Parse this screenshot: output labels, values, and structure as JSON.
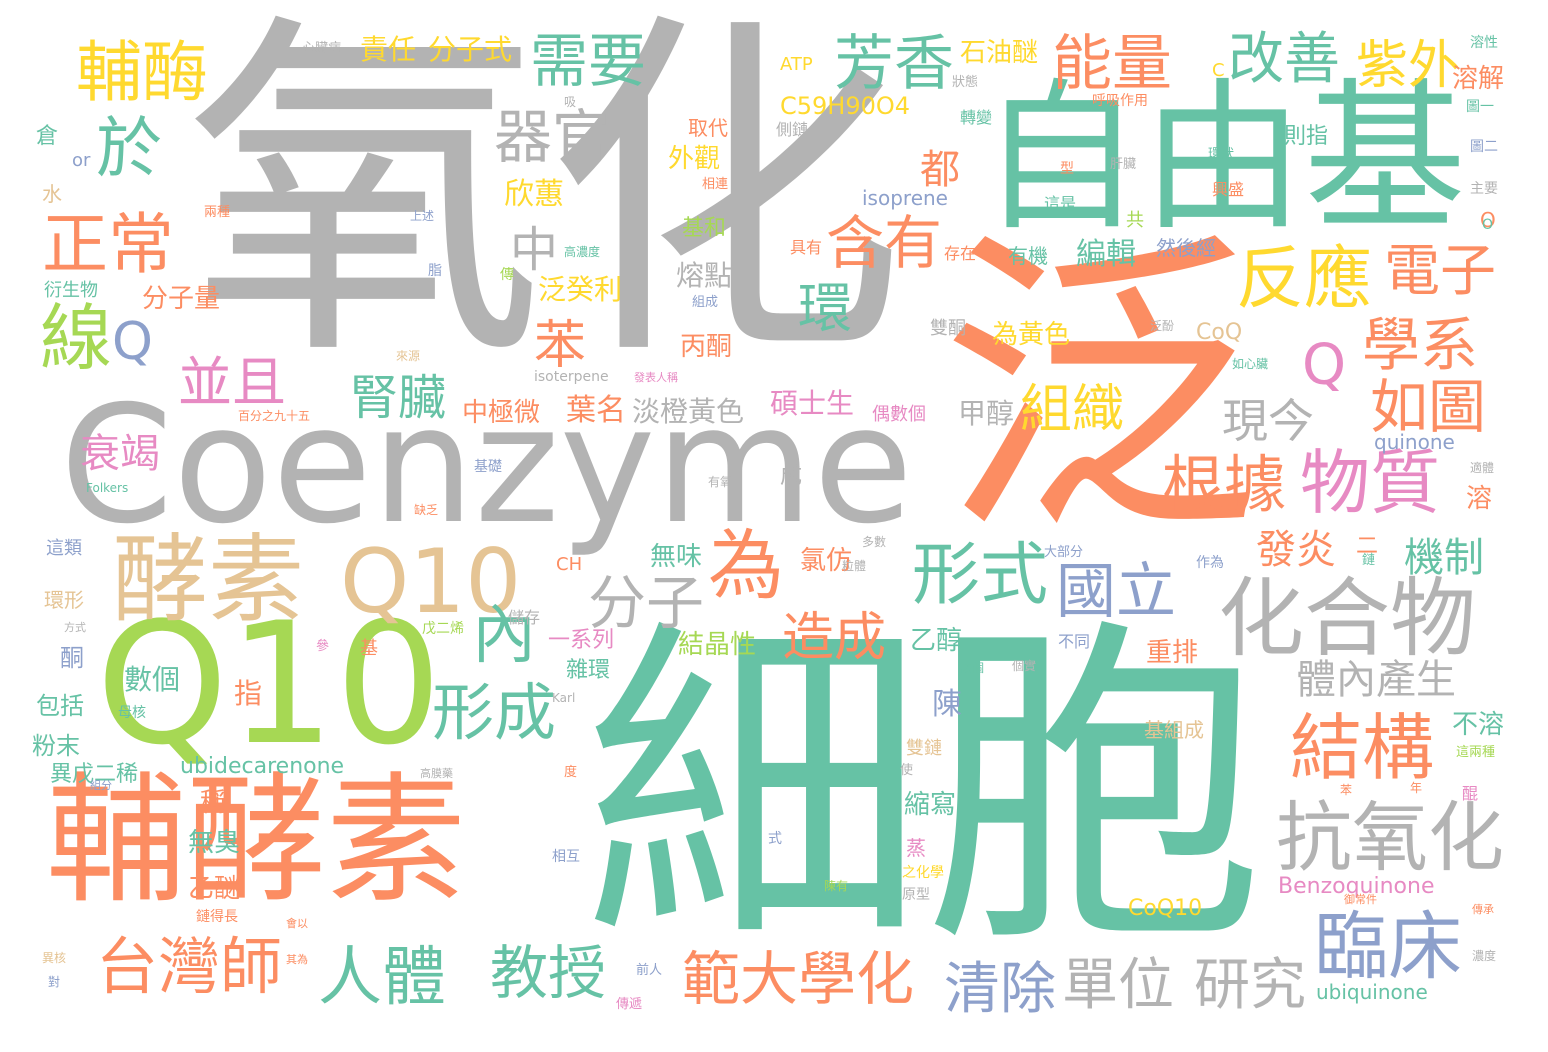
{
  "palette": {
    "green": "#66c2a5",
    "orange": "#fc8d62",
    "gray": "#b3b3b3",
    "lime": "#a6d854",
    "yellow": "#ffd92f",
    "tan": "#e5c494",
    "blue": "#8da0cb",
    "pink": "#e78ac3"
  },
  "words": [
    {
      "text": "氧化",
      "color": "gray"
    },
    {
      "text": "泛",
      "color": "orange"
    },
    {
      "text": "細胞",
      "color": "green"
    },
    {
      "text": "自由基",
      "color": "green"
    },
    {
      "text": "Coenzyme",
      "color": "gray"
    },
    {
      "text": "Q10",
      "color": "lime"
    },
    {
      "text": "輔酵素",
      "color": "orange"
    },
    {
      "text": "酵素",
      "color": "tan"
    },
    {
      "text": "Q10",
      "color": "tan"
    },
    {
      "text": "化合物",
      "color": "gray"
    },
    {
      "text": "抗氧化",
      "color": "gray"
    },
    {
      "text": "臨床",
      "color": "blue"
    },
    {
      "text": "結構",
      "color": "orange"
    },
    {
      "text": "物質",
      "color": "pink"
    },
    {
      "text": "根據",
      "color": "orange"
    },
    {
      "text": "台灣師",
      "color": "orange"
    },
    {
      "text": "人體",
      "color": "green"
    },
    {
      "text": "範大學化",
      "color": "orange"
    },
    {
      "text": "教授",
      "color": "green"
    },
    {
      "text": "單位",
      "color": "gray"
    },
    {
      "text": "研究",
      "color": "gray"
    },
    {
      "text": "清除",
      "color": "blue"
    },
    {
      "text": "形式",
      "color": "green"
    },
    {
      "text": "分子",
      "color": "gray"
    },
    {
      "text": "為",
      "color": "orange"
    },
    {
      "text": "內",
      "color": "green"
    },
    {
      "text": "形成",
      "color": "green"
    },
    {
      "text": "國立",
      "color": "blue"
    },
    {
      "text": "造成",
      "color": "orange"
    },
    {
      "text": "輔酶",
      "color": "yellow"
    },
    {
      "text": "於",
      "color": "green"
    },
    {
      "text": "正常",
      "color": "orange"
    },
    {
      "text": "線",
      "color": "lime"
    },
    {
      "text": "Q",
      "color": "blue"
    },
    {
      "text": "芳香",
      "color": "green"
    },
    {
      "text": "能量",
      "color": "orange"
    },
    {
      "text": "改善",
      "color": "green"
    },
    {
      "text": "紫外",
      "color": "yellow"
    },
    {
      "text": "需要",
      "color": "green"
    },
    {
      "text": "器官",
      "color": "gray"
    },
    {
      "text": "含有",
      "color": "orange"
    },
    {
      "text": "反應",
      "color": "yellow"
    },
    {
      "text": "電子",
      "color": "orange"
    },
    {
      "text": "學系",
      "color": "orange"
    },
    {
      "text": "Q",
      "color": "pink"
    },
    {
      "text": "如圖",
      "color": "orange"
    },
    {
      "text": "中",
      "color": "gray"
    },
    {
      "text": "環",
      "color": "green"
    },
    {
      "text": "苯",
      "color": "orange"
    },
    {
      "text": "並且",
      "color": "pink"
    },
    {
      "text": "腎臟",
      "color": "green"
    },
    {
      "text": "組織",
      "color": "yellow"
    },
    {
      "text": "現今",
      "color": "gray"
    },
    {
      "text": "衰竭",
      "color": "pink"
    },
    {
      "text": "葉名",
      "color": "orange"
    },
    {
      "text": "淡橙黃色",
      "color": "gray"
    },
    {
      "text": "中極微",
      "color": "orange"
    },
    {
      "text": "碩士生",
      "color": "pink"
    },
    {
      "text": "發炎",
      "color": "orange"
    },
    {
      "text": "機制",
      "color": "green"
    },
    {
      "text": "體內產生",
      "color": "gray"
    },
    {
      "text": "都",
      "color": "orange"
    },
    {
      "text": "欣蕙",
      "color": "yellow"
    },
    {
      "text": "外觀",
      "color": "yellow"
    },
    {
      "text": "取代",
      "color": "orange"
    },
    {
      "text": "責任",
      "color": "yellow"
    },
    {
      "text": "分子式",
      "color": "yellow"
    },
    {
      "text": "石油醚",
      "color": "yellow"
    },
    {
      "text": "C59H90O4",
      "color": "yellow"
    },
    {
      "text": "ATP",
      "color": "yellow"
    },
    {
      "text": "熔點",
      "color": "gray"
    },
    {
      "text": "基和",
      "color": "lime"
    },
    {
      "text": "泛癸利",
      "color": "yellow"
    },
    {
      "text": "分子量",
      "color": "orange"
    },
    {
      "text": "丙酮",
      "color": "orange"
    },
    {
      "text": "為黃色",
      "color": "yellow"
    },
    {
      "text": "編輯",
      "color": "green"
    },
    {
      "text": "CoQ",
      "color": "tan"
    },
    {
      "text": "甲醇",
      "color": "gray"
    },
    {
      "text": "quinone",
      "color": "blue"
    },
    {
      "text": "isoprene",
      "color": "blue"
    },
    {
      "text": "溶解",
      "color": "orange"
    },
    {
      "text": "無味",
      "color": "green"
    },
    {
      "text": "氯仿",
      "color": "orange"
    },
    {
      "text": "結晶性",
      "color": "lime"
    },
    {
      "text": "乙醇",
      "color": "green"
    },
    {
      "text": "一系列",
      "color": "pink"
    },
    {
      "text": "雜環",
      "color": "green"
    },
    {
      "text": "重排",
      "color": "orange"
    },
    {
      "text": "不溶",
      "color": "green"
    },
    {
      "text": "指",
      "color": "orange"
    },
    {
      "text": "陳",
      "color": "blue"
    },
    {
      "text": "數個",
      "color": "green"
    },
    {
      "text": "ubidecarenone",
      "color": "green"
    },
    {
      "text": "縮寫",
      "color": "green"
    },
    {
      "text": "無臭",
      "color": "green"
    },
    {
      "text": "稱",
      "color": "orange"
    },
    {
      "text": "乙醚",
      "color": "orange"
    },
    {
      "text": "Benzoquinone",
      "color": "pink"
    },
    {
      "text": "CoQ10",
      "color": "yellow"
    },
    {
      "text": "ubiquinone",
      "color": "green"
    },
    {
      "text": "包括",
      "color": "green"
    },
    {
      "text": "粉末",
      "color": "green"
    },
    {
      "text": "酮",
      "color": "blue"
    },
    {
      "text": "異戊二稀",
      "color": "green"
    },
    {
      "text": "基組成",
      "color": "tan"
    },
    {
      "text": "倉",
      "color": "green"
    },
    {
      "text": "or",
      "color": "blue"
    },
    {
      "text": "水",
      "color": "tan"
    },
    {
      "text": "則指",
      "color": "green"
    },
    {
      "text": "心臟病",
      "color": "gray"
    },
    {
      "text": "Folkers",
      "color": "green"
    },
    {
      "text": "isoterpene",
      "color": "gray"
    },
    {
      "text": "環形",
      "color": "tan"
    },
    {
      "text": "這類",
      "color": "blue"
    },
    {
      "text": "CH",
      "color": "orange"
    },
    {
      "text": "雙酮",
      "color": "gray"
    },
    {
      "text": "偶數個",
      "color": "pink"
    },
    {
      "text": "衍生物",
      "color": "green"
    },
    {
      "text": "有機",
      "color": "green"
    },
    {
      "text": "然後經",
      "color": "blue"
    },
    {
      "text": "百分之九十五",
      "color": "orange"
    },
    {
      "text": "基礎",
      "color": "blue"
    },
    {
      "text": "成",
      "color": "gray"
    },
    {
      "text": "大部分",
      "color": "blue"
    },
    {
      "text": "作為",
      "color": "blue"
    },
    {
      "text": "二",
      "color": "orange"
    },
    {
      "text": "不同",
      "color": "blue"
    },
    {
      "text": "雙鏈",
      "color": "tan"
    },
    {
      "text": "溶",
      "color": "orange"
    },
    {
      "text": "O",
      "color": "orange"
    },
    {
      "text": "戊二烯",
      "color": "lime"
    },
    {
      "text": "儲存",
      "color": "gray"
    },
    {
      "text": "母核",
      "color": "green"
    },
    {
      "text": "蒸",
      "color": "pink"
    },
    {
      "text": "之化學",
      "color": "yellow"
    },
    {
      "text": "原型",
      "color": "gray"
    },
    {
      "text": "前人",
      "color": "blue"
    },
    {
      "text": "傳遞",
      "color": "pink"
    },
    {
      "text": "鏈得長",
      "color": "orange"
    },
    {
      "text": "相互",
      "color": "blue"
    },
    {
      "text": "式",
      "color": "blue"
    },
    {
      "text": "高濃度",
      "color": "green"
    },
    {
      "text": "存在",
      "color": "orange"
    },
    {
      "text": "具有",
      "color": "orange"
    },
    {
      "text": "相連",
      "color": "orange"
    },
    {
      "text": "側鏈",
      "color": "gray"
    },
    {
      "text": "轉變",
      "color": "green"
    },
    {
      "text": "呼吸作用",
      "color": "orange"
    },
    {
      "text": "溶性",
      "color": "green"
    },
    {
      "text": "圖一",
      "color": "green"
    },
    {
      "text": "圖二",
      "color": "blue"
    },
    {
      "text": "主要",
      "color": "gray"
    },
    {
      "text": "興盛",
      "color": "orange"
    },
    {
      "text": "這是",
      "color": "green"
    },
    {
      "text": "型",
      "color": "orange"
    },
    {
      "text": "肝臟",
      "color": "gray"
    },
    {
      "text": "環狀",
      "color": "green"
    },
    {
      "text": "共",
      "color": "lime"
    },
    {
      "text": "鏈",
      "color": "green"
    },
    {
      "text": "上述",
      "color": "blue"
    },
    {
      "text": "兩種",
      "color": "orange"
    },
    {
      "text": "脂",
      "color": "blue"
    },
    {
      "text": "傳",
      "color": "lime"
    },
    {
      "text": "組成",
      "color": "blue"
    },
    {
      "text": "泛酚",
      "color": "gray"
    },
    {
      "text": "如心臟",
      "color": "green"
    },
    {
      "text": "來源",
      "color": "tan"
    },
    {
      "text": "發表人稱",
      "color": "pink"
    },
    {
      "text": "狀態",
      "color": "gray"
    },
    {
      "text": "缺乏",
      "color": "orange"
    },
    {
      "text": "有氧",
      "color": "gray"
    },
    {
      "text": "多數",
      "color": "gray"
    },
    {
      "text": "粒體",
      "color": "gray"
    },
    {
      "text": "方式",
      "color": "gray"
    },
    {
      "text": "參",
      "color": "pink"
    },
    {
      "text": "基",
      "color": "orange"
    },
    {
      "text": "Karl",
      "color": "gray"
    },
    {
      "text": "個實",
      "color": "gray"
    },
    {
      "text": "該個",
      "color": "green"
    },
    {
      "text": "高膜藥",
      "color": "gray"
    },
    {
      "text": "使",
      "color": "gray"
    },
    {
      "text": "度",
      "color": "orange"
    },
    {
      "text": "這兩種",
      "color": "lime"
    },
    {
      "text": "組分",
      "color": "blue"
    },
    {
      "text": "苯",
      "color": "orange"
    },
    {
      "text": "年",
      "color": "orange"
    },
    {
      "text": "醌",
      "color": "pink"
    },
    {
      "text": "御常件",
      "color": "orange"
    },
    {
      "text": "傳承",
      "color": "orange"
    },
    {
      "text": "濃度",
      "color": "gray"
    },
    {
      "text": "異核",
      "color": "tan"
    },
    {
      "text": "對",
      "color": "blue"
    },
    {
      "text": "其為",
      "color": "orange"
    },
    {
      "text": "會以",
      "color": "orange"
    },
    {
      "text": "陳有",
      "color": "lime"
    },
    {
      "text": "適體",
      "color": "gray"
    },
    {
      "text": "C",
      "color": "yellow"
    },
    {
      "text": "O",
      "color": "green"
    },
    {
      "text": "吸",
      "color": "gray"
    }
  ]
}
